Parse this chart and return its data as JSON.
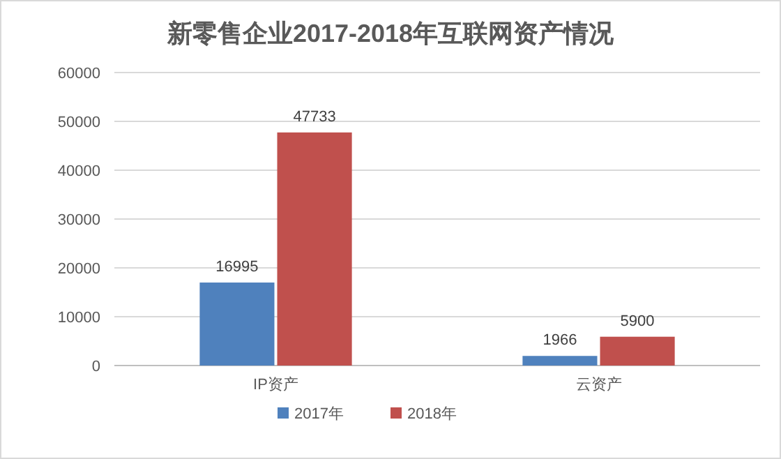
{
  "chart_data": {
    "type": "bar",
    "title": "新零售企业2017-2018年互联网资产情况",
    "categories": [
      "IP资产",
      "云资产"
    ],
    "series": [
      {
        "name": "2017年",
        "color": "#4f81bd",
        "values": [
          16995,
          1966
        ]
      },
      {
        "name": "2018年",
        "color": "#c0504d",
        "values": [
          47733,
          5900
        ]
      }
    ],
    "ylim": [
      0,
      60000
    ],
    "yticks": [
      0,
      10000,
      20000,
      30000,
      40000,
      50000,
      60000
    ],
    "grid": "y",
    "legend": "bottom",
    "data_labels": true
  }
}
